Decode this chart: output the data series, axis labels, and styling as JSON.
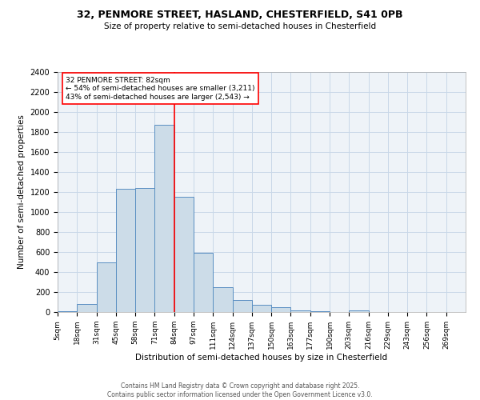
{
  "title1": "32, PENMORE STREET, HASLAND, CHESTERFIELD, S41 0PB",
  "title2": "Size of property relative to semi-detached houses in Chesterfield",
  "xlabel": "Distribution of semi-detached houses by size in Chesterfield",
  "ylabel": "Number of semi-detached properties",
  "categories": [
    "5sqm",
    "18sqm",
    "31sqm",
    "45sqm",
    "58sqm",
    "71sqm",
    "84sqm",
    "97sqm",
    "111sqm",
    "124sqm",
    "137sqm",
    "150sqm",
    "163sqm",
    "177sqm",
    "190sqm",
    "203sqm",
    "216sqm",
    "229sqm",
    "243sqm",
    "256sqm",
    "269sqm"
  ],
  "bar_heights": [
    10,
    80,
    500,
    1230,
    1240,
    1870,
    1150,
    590,
    245,
    120,
    70,
    45,
    18,
    8,
    0,
    20,
    0,
    0,
    0,
    0,
    0
  ],
  "bar_color": "#ccdce8",
  "bar_edge_color": "#5a8fc2",
  "property_bin_index": 6,
  "annotation_title": "32 PENMORE STREET: 82sqm",
  "annotation_line1": "← 54% of semi-detached houses are smaller (3,211)",
  "annotation_line2": "43% of semi-detached houses are larger (2,543) →",
  "ylim": [
    0,
    2400
  ],
  "yticks": [
    0,
    200,
    400,
    600,
    800,
    1000,
    1200,
    1400,
    1600,
    1800,
    2000,
    2200,
    2400
  ],
  "footer1": "Contains HM Land Registry data © Crown copyright and database right 2025.",
  "footer2": "Contains public sector information licensed under the Open Government Licence v3.0.",
  "bg_color": "#eef3f8",
  "grid_color": "#c8d8e8"
}
